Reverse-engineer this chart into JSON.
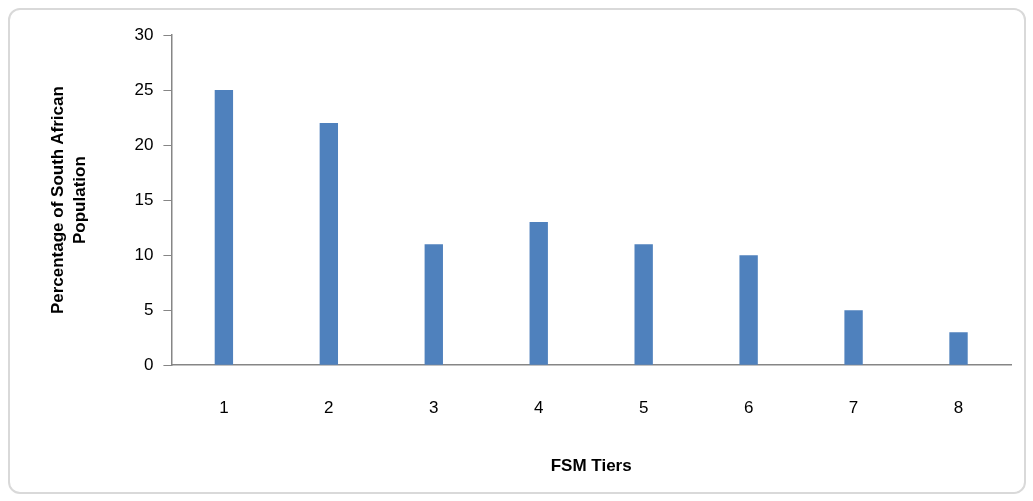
{
  "chart_data": {
    "type": "bar",
    "xlabel": "FSM Tiers",
    "ylabel": "Percentage of South African Population",
    "categories": [
      "1",
      "2",
      "3",
      "4",
      "5",
      "6",
      "7",
      "8"
    ],
    "values": [
      25,
      22,
      11,
      13,
      11,
      10,
      5,
      3
    ],
    "color": "#4f81bd",
    "ylim": [
      0,
      30
    ],
    "yticks": [
      0,
      5,
      10,
      15,
      20,
      25,
      30
    ],
    "grid": false
  }
}
